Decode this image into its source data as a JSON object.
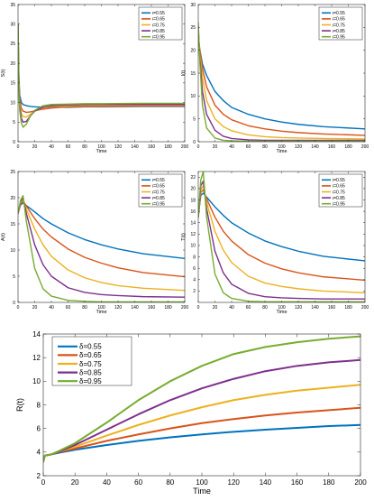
{
  "chart_data": [
    {
      "type": "line",
      "xlabel": "Time",
      "ylabel": "S(t)",
      "xlim": [
        0,
        200
      ],
      "ylim": [
        0,
        35
      ],
      "xticks": [
        0,
        20,
        40,
        60,
        80,
        100,
        120,
        140,
        160,
        180,
        200
      ],
      "yticks": [
        0,
        5,
        10,
        15,
        20,
        25,
        30,
        35
      ],
      "legend": "top-right",
      "grid": false,
      "series": [
        {
          "name": "ι=0.55",
          "color": "#0072BD",
          "x": [
            0,
            1,
            2,
            4,
            6,
            10,
            15,
            20,
            30,
            40,
            60,
            80,
            100,
            150,
            200
          ],
          "y": [
            30,
            17,
            12,
            10,
            9.5,
            9.2,
            9.0,
            8.9,
            8.8,
            8.8,
            8.8,
            8.9,
            8.9,
            9.0,
            9.0
          ]
        },
        {
          "name": "ι=0.65",
          "color": "#D95319",
          "x": [
            0,
            1,
            2,
            4,
            6,
            10,
            15,
            20,
            30,
            40,
            60,
            80,
            100,
            150,
            200
          ],
          "y": [
            30,
            16,
            11,
            8.6,
            7.8,
            7.5,
            7.6,
            7.9,
            8.3,
            8.6,
            8.9,
            9.0,
            9.0,
            9.1,
            9.1
          ]
        },
        {
          "name": "ι=0.75",
          "color": "#EDB120",
          "x": [
            0,
            1,
            2,
            4,
            6,
            10,
            15,
            20,
            30,
            40,
            60,
            80,
            100,
            150,
            200
          ],
          "y": [
            30,
            15,
            10,
            7.2,
            6.4,
            6.3,
            7.0,
            7.8,
            8.6,
            9.0,
            9.2,
            9.3,
            9.3,
            9.3,
            9.3
          ]
        },
        {
          "name": "ι=0.85",
          "color": "#7E2F8E",
          "x": [
            0,
            1,
            2,
            4,
            6,
            10,
            15,
            20,
            30,
            40,
            60,
            80,
            100,
            150,
            200
          ],
          "y": [
            30,
            14,
            9,
            6.0,
            5.0,
            5.2,
            6.6,
            7.8,
            8.8,
            9.2,
            9.4,
            9.5,
            9.5,
            9.5,
            9.5
          ]
        },
        {
          "name": "ι=0.95",
          "color": "#77AC30",
          "x": [
            0,
            1,
            2,
            4,
            6,
            10,
            15,
            20,
            30,
            40,
            60,
            80,
            100,
            150,
            200
          ],
          "y": [
            30,
            13,
            8,
            4.8,
            3.7,
            4.5,
            6.6,
            8.0,
            9.2,
            9.5,
            9.6,
            9.7,
            9.7,
            9.8,
            9.8
          ]
        }
      ]
    },
    {
      "type": "line",
      "xlabel": "Time",
      "ylabel": "I(t)",
      "xlim": [
        0,
        200
      ],
      "ylim": [
        0,
        30
      ],
      "xticks": [
        0,
        20,
        40,
        60,
        80,
        100,
        120,
        140,
        160,
        180,
        200
      ],
      "yticks": [
        0,
        5,
        10,
        15,
        20,
        25,
        30
      ],
      "legend": "top-right",
      "grid": false,
      "series": [
        {
          "name": "ι=0.55",
          "color": "#0072BD",
          "x": [
            0,
            2,
            5,
            10,
            20,
            30,
            40,
            60,
            80,
            100,
            120,
            150,
            200
          ],
          "y": [
            22,
            20,
            17,
            14.5,
            11,
            9,
            7.5,
            6,
            5,
            4.3,
            3.8,
            3.3,
            2.8
          ]
        },
        {
          "name": "ι=0.65",
          "color": "#D95319",
          "x": [
            0,
            2,
            5,
            10,
            20,
            30,
            40,
            60,
            80,
            100,
            120,
            150,
            200
          ],
          "y": [
            23,
            20,
            16,
            12,
            8,
            6,
            4.8,
            3.5,
            2.8,
            2.3,
            2.0,
            1.7,
            1.4
          ]
        },
        {
          "name": "ι=0.75",
          "color": "#EDB120",
          "x": [
            0,
            2,
            5,
            10,
            20,
            30,
            40,
            60,
            80,
            100,
            120,
            150,
            200
          ],
          "y": [
            24,
            19,
            14,
            9,
            5,
            3.3,
            2.4,
            1.5,
            1.1,
            0.9,
            0.8,
            0.7,
            0.6
          ]
        },
        {
          "name": "ι=0.85",
          "color": "#7E2F8E",
          "x": [
            0,
            2,
            5,
            10,
            20,
            30,
            40,
            60,
            80,
            100,
            120,
            150,
            200
          ],
          "y": [
            25,
            18,
            11,
            6,
            2.5,
            1.2,
            0.7,
            0.4,
            0.3,
            0.3,
            0.3,
            0.3,
            0.3
          ]
        },
        {
          "name": "ι=0.95",
          "color": "#77AC30",
          "x": [
            0,
            2,
            5,
            10,
            20,
            30,
            40,
            60,
            80,
            100,
            120,
            150,
            200
          ],
          "y": [
            26,
            17,
            8,
            3,
            0.8,
            0.3,
            0.2,
            0.1,
            0.1,
            0.1,
            0.1,
            0.1,
            0.1
          ]
        }
      ]
    },
    {
      "type": "line",
      "xlabel": "Time",
      "ylabel": "A(t)",
      "xlim": [
        0,
        200
      ],
      "ylim": [
        0,
        25
      ],
      "xticks": [
        0,
        20,
        40,
        60,
        80,
        100,
        120,
        140,
        160,
        180,
        200
      ],
      "yticks": [
        0,
        5,
        10,
        15,
        20,
        25
      ],
      "legend": "top-right",
      "grid": false,
      "series": [
        {
          "name": "ι=0.55",
          "color": "#0072BD",
          "x": [
            0,
            3,
            6,
            10,
            20,
            30,
            40,
            60,
            80,
            100,
            120,
            150,
            200
          ],
          "y": [
            17,
            18.6,
            19.0,
            18.5,
            17.3,
            16.0,
            15.0,
            13.3,
            12.0,
            11.0,
            10.2,
            9.3,
            8.4
          ]
        },
        {
          "name": "ι=0.65",
          "color": "#D95319",
          "x": [
            0,
            3,
            6,
            10,
            20,
            30,
            40,
            60,
            80,
            100,
            120,
            150,
            200
          ],
          "y": [
            17,
            18.8,
            19.4,
            18.4,
            16.0,
            14.0,
            12.5,
            10.2,
            8.6,
            7.5,
            6.6,
            5.7,
            4.9
          ]
        },
        {
          "name": "ι=0.75",
          "color": "#EDB120",
          "x": [
            0,
            3,
            6,
            10,
            20,
            30,
            40,
            60,
            80,
            100,
            120,
            150,
            200
          ],
          "y": [
            17,
            19.0,
            19.6,
            17.8,
            14.0,
            11.0,
            8.8,
            6.2,
            4.7,
            3.8,
            3.2,
            2.7,
            2.3
          ]
        },
        {
          "name": "ι=0.85",
          "color": "#7E2F8E",
          "x": [
            0,
            3,
            6,
            10,
            20,
            30,
            40,
            60,
            80,
            100,
            120,
            150,
            200
          ],
          "y": [
            17,
            19.2,
            20.0,
            17.0,
            11.0,
            7.2,
            5.0,
            2.8,
            1.9,
            1.5,
            1.3,
            1.1,
            1.0
          ]
        },
        {
          "name": "ι=0.95",
          "color": "#77AC30",
          "x": [
            0,
            3,
            6,
            10,
            20,
            30,
            40,
            60,
            80,
            100,
            120,
            150,
            200
          ],
          "y": [
            17,
            19.5,
            20.4,
            15.5,
            6.5,
            2.6,
            1.2,
            0.4,
            0.2,
            0.1,
            0.1,
            0.1,
            0.1
          ]
        }
      ]
    },
    {
      "type": "line",
      "xlabel": "Time",
      "ylabel": "T(t)",
      "xlim": [
        0,
        200
      ],
      "ylim": [
        0,
        23
      ],
      "xticks": [
        0,
        20,
        40,
        60,
        80,
        100,
        120,
        140,
        160,
        180,
        200
      ],
      "yticks": [
        2,
        4,
        6,
        8,
        10,
        12,
        14,
        16,
        18,
        20,
        22
      ],
      "legend": "top-right",
      "grid": false,
      "series": [
        {
          "name": "ι=0.55",
          "color": "#0072BD",
          "x": [
            0,
            3,
            6,
            10,
            20,
            30,
            40,
            60,
            80,
            100,
            120,
            150,
            200
          ],
          "y": [
            15,
            18.8,
            19.2,
            18.5,
            16.8,
            15.3,
            14.0,
            12.2,
            10.8,
            9.8,
            9.0,
            8.1,
            7.3
          ]
        },
        {
          "name": "ι=0.65",
          "color": "#D95319",
          "x": [
            0,
            3,
            6,
            10,
            20,
            30,
            40,
            60,
            80,
            100,
            120,
            150,
            200
          ],
          "y": [
            15,
            19.3,
            19.8,
            18.2,
            15.0,
            12.5,
            10.8,
            8.4,
            6.9,
            5.9,
            5.2,
            4.5,
            3.9
          ]
        },
        {
          "name": "ι=0.75",
          "color": "#EDB120",
          "x": [
            0,
            3,
            6,
            10,
            20,
            30,
            40,
            60,
            80,
            100,
            120,
            150,
            200
          ],
          "y": [
            15,
            19.8,
            20.5,
            17.6,
            12.5,
            9.2,
            7.0,
            4.6,
            3.4,
            2.8,
            2.4,
            2.0,
            1.7
          ]
        },
        {
          "name": "ι=0.85",
          "color": "#7E2F8E",
          "x": [
            0,
            3,
            6,
            10,
            20,
            30,
            40,
            60,
            80,
            100,
            120,
            150,
            200
          ],
          "y": [
            15,
            20.5,
            21.3,
            16.5,
            9.0,
            5.2,
            3.2,
            1.6,
            1.0,
            0.8,
            0.7,
            0.6,
            0.6
          ]
        },
        {
          "name": "ι=0.95",
          "color": "#77AC30",
          "x": [
            0,
            3,
            6,
            10,
            20,
            30,
            40,
            60,
            80,
            100,
            120,
            150,
            200
          ],
          "y": [
            15,
            21.5,
            23.0,
            15.0,
            5.0,
            1.7,
            0.7,
            0.2,
            0.1,
            0.1,
            0.1,
            0.1,
            0.1
          ]
        }
      ]
    },
    {
      "type": "line",
      "xlabel": "Time",
      "ylabel": "R(t)",
      "xlim": [
        0,
        200
      ],
      "ylim": [
        2,
        14
      ],
      "xticks": [
        0,
        20,
        40,
        60,
        80,
        100,
        120,
        140,
        160,
        180,
        200
      ],
      "yticks": [
        2,
        4,
        6,
        8,
        10,
        12,
        14
      ],
      "legend": "top-left",
      "grid": false,
      "series": [
        {
          "name": "δ=0.55",
          "color": "#0072BD",
          "x": [
            0,
            1,
            5,
            10,
            20,
            40,
            60,
            80,
            100,
            120,
            140,
            160,
            180,
            200
          ],
          "y": [
            3.2,
            3.7,
            3.8,
            3.95,
            4.2,
            4.6,
            4.95,
            5.25,
            5.5,
            5.72,
            5.9,
            6.05,
            6.2,
            6.3
          ]
        },
        {
          "name": "δ=0.65",
          "color": "#D95319",
          "x": [
            0,
            1,
            5,
            10,
            20,
            40,
            60,
            80,
            100,
            120,
            140,
            160,
            180,
            200
          ],
          "y": [
            3.2,
            3.7,
            3.8,
            4.0,
            4.3,
            4.95,
            5.5,
            6.0,
            6.45,
            6.8,
            7.1,
            7.35,
            7.55,
            7.75
          ]
        },
        {
          "name": "δ=0.75",
          "color": "#EDB120",
          "x": [
            0,
            1,
            5,
            10,
            20,
            40,
            60,
            80,
            100,
            120,
            140,
            160,
            180,
            200
          ],
          "y": [
            3.2,
            3.7,
            3.8,
            4.05,
            4.45,
            5.4,
            6.3,
            7.1,
            7.8,
            8.4,
            8.85,
            9.2,
            9.45,
            9.7
          ]
        },
        {
          "name": "δ=0.85",
          "color": "#7E2F8E",
          "x": [
            0,
            1,
            5,
            10,
            20,
            40,
            60,
            80,
            100,
            120,
            140,
            160,
            180,
            200
          ],
          "y": [
            3.2,
            3.7,
            3.8,
            4.05,
            4.6,
            5.9,
            7.2,
            8.4,
            9.4,
            10.2,
            10.85,
            11.3,
            11.6,
            11.8
          ]
        },
        {
          "name": "δ=0.95",
          "color": "#77AC30",
          "x": [
            0,
            1,
            5,
            10,
            20,
            40,
            60,
            80,
            100,
            120,
            140,
            160,
            180,
            200
          ],
          "y": [
            3.2,
            3.7,
            3.8,
            4.1,
            4.75,
            6.5,
            8.4,
            10.0,
            11.3,
            12.3,
            12.9,
            13.3,
            13.6,
            13.8
          ]
        }
      ]
    }
  ]
}
